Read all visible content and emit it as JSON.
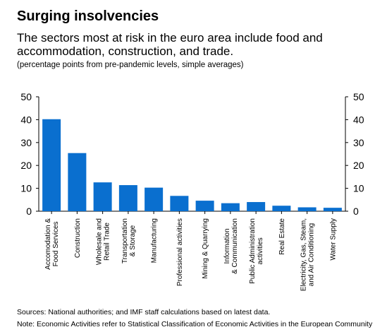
{
  "header": {
    "title": "Surging insolvencies",
    "subtitle": "The sectors most at risk in the euro area include food and accommodation, construction, and trade.",
    "units": "(percentage points from pre-pandemic levels, simple averages)"
  },
  "footer": {
    "sources": "Sources: National authorities; and IMF staff calculations based on latest data.",
    "note": "Note: Economic Activities refer to Statistical Classification of Economic Activities in the European Community"
  },
  "colors": {
    "bar": "#0a6fcf",
    "axis": "#000000",
    "text": "#000000"
  },
  "chart_data": {
    "type": "bar",
    "title": "Surging insolvencies",
    "subtitle": "The sectors most at risk in the euro area include food and accommodation, construction, and trade.",
    "units": "(percentage points from pre-pandemic levels, simple averages)",
    "categories": [
      [
        "Accomodation &",
        "Food Services"
      ],
      [
        "Construction"
      ],
      [
        "Wholesale and",
        "Retail Trade"
      ],
      [
        "Transportation",
        "& Storage"
      ],
      [
        "Manufacturing"
      ],
      [
        "Professional activities"
      ],
      [
        "Mining & Quarrying"
      ],
      [
        "Information",
        "& Communication"
      ],
      [
        "Public Administration",
        "activities"
      ],
      [
        "Real Estate"
      ],
      [
        "Electricity, Gas, Steam,",
        "and Air Conditioning"
      ],
      [
        "Water Supply"
      ]
    ],
    "values": [
      40.2,
      25.4,
      12.6,
      11.4,
      10.3,
      6.7,
      4.6,
      3.5,
      4.0,
      2.4,
      1.7,
      1.5
    ],
    "ylim": [
      0,
      50
    ],
    "yticks": [
      0,
      10,
      20,
      30,
      40,
      50
    ],
    "secondary_axis": true,
    "grid": false
  }
}
